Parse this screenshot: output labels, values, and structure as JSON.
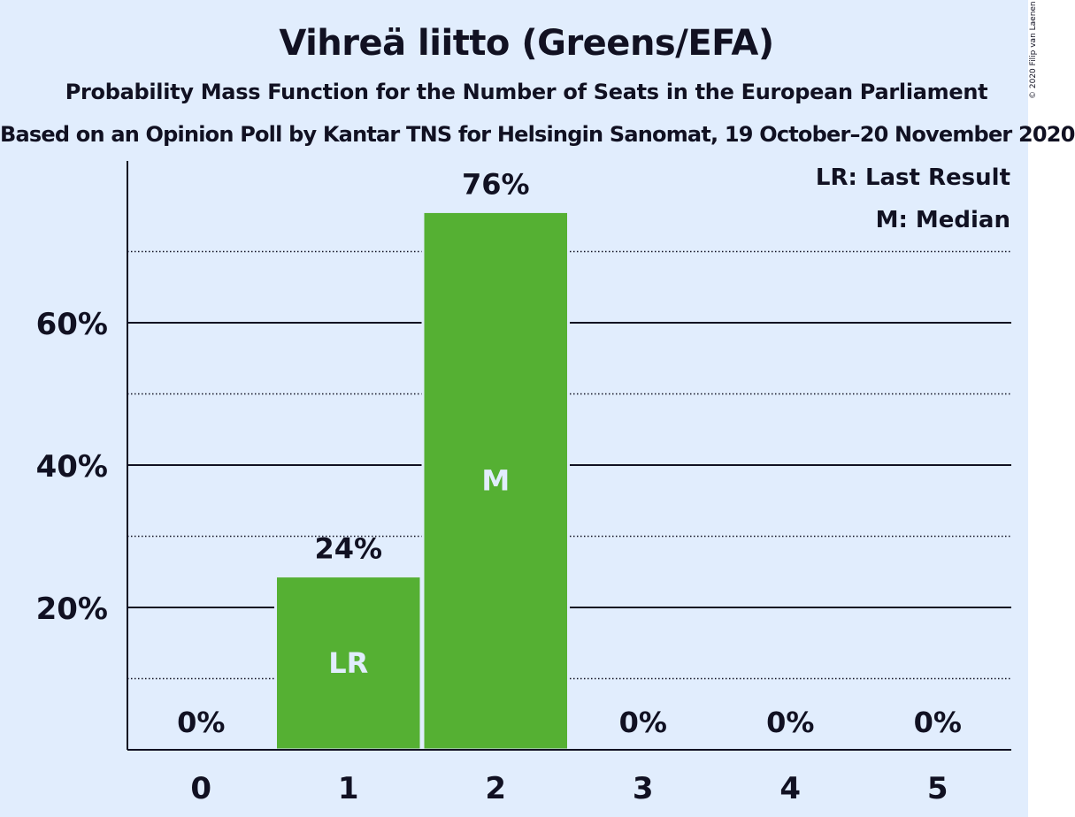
{
  "chart_data": {
    "type": "bar",
    "title": "Vihreä liitto (Greens/EFA)",
    "subtitle": "Probability Mass Function for the Number of Seats in the European Parliament",
    "source": "Based on an Opinion Poll by Kantar TNS for Helsingin Sanomat, 19 October–20 November 2020",
    "copyright": "© 2020 Filip van Laenen",
    "categories": [
      "0",
      "1",
      "2",
      "3",
      "4",
      "5"
    ],
    "values": [
      0,
      24.4,
      75.6,
      0,
      0,
      0
    ],
    "value_labels": [
      "0%",
      "24%",
      "76%",
      "0%",
      "0%",
      "0%"
    ],
    "bar_markers": [
      "",
      "LR",
      "M",
      "",
      "",
      ""
    ],
    "ylim": [
      0,
      82
    ],
    "yticks_major": [
      20,
      40,
      60
    ],
    "ytick_labels": [
      "20%",
      "40%",
      "60%"
    ],
    "yticks_minor": [
      10,
      30,
      50,
      70
    ],
    "legend": [
      "LR: Last Result",
      "M: Median"
    ],
    "legend_position": "top-right",
    "colors": {
      "bar": "#55b033",
      "background": "#e1edfd",
      "text": "#111122",
      "marker_text": "#e1edfd"
    },
    "grid": true
  }
}
